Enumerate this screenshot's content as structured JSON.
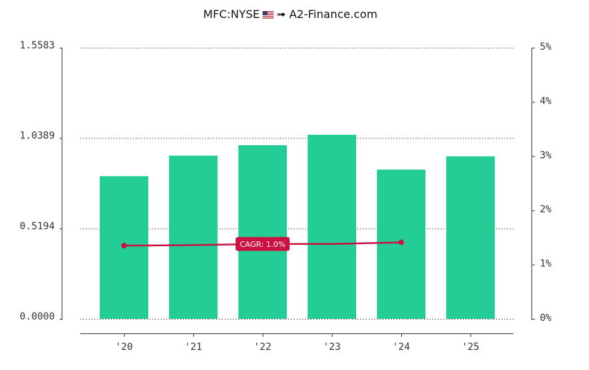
{
  "header": {
    "ticker": "MFC:NYSE",
    "flag_icon": "us-flag-icon",
    "arrow": "➟",
    "site": "A2-Finance.com"
  },
  "colors": {
    "bar": "#24CC96",
    "line": "#CC1040",
    "grid": "#222222",
    "axis": "#333333",
    "text": "#333333"
  },
  "chart_data": {
    "type": "bar",
    "categories": [
      "'20",
      "'21",
      "'22",
      "'23",
      "'24",
      "'25"
    ],
    "values": [
      0.82,
      0.938,
      0.998,
      1.058,
      0.858,
      0.934
    ],
    "ylim": [
      0,
      1.5583
    ],
    "y_ticks": [
      "0.0000",
      "0.5194",
      "1.0389",
      "1.5583"
    ],
    "y_tick_values": [
      0,
      0.5194,
      1.0389,
      1.5583
    ],
    "y2_ticks": [
      "0%",
      "1%",
      "2%",
      "3%",
      "4%",
      "5%"
    ],
    "y2_tick_values": [
      0,
      1,
      2,
      3,
      4,
      5
    ],
    "y2lim": [
      0,
      5
    ],
    "grid": true,
    "line_series": {
      "x_index": [
        0,
        1,
        2,
        3,
        4
      ],
      "values": [
        1.35,
        1.36,
        1.38,
        1.38,
        1.41
      ]
    },
    "annotation": "CAGR: 1.0%"
  }
}
